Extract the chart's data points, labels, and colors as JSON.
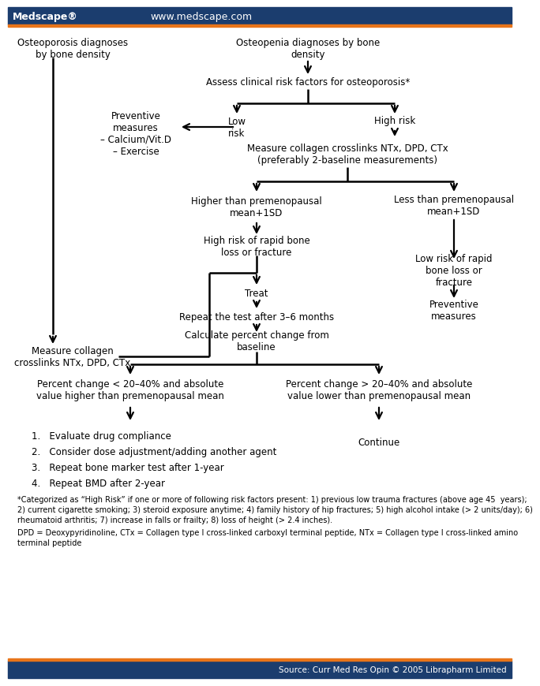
{
  "header_bg": "#1b3d6e",
  "header_orange_line": "#e8751a",
  "header_text_left": "Medscape®",
  "header_text_right": "www.medscape.com",
  "footer_bg": "#1b3d6e",
  "footer_text": "Source: Curr Med Res Opin © 2005 Librapharm Limited",
  "bg_color": "#ffffff",
  "text_color": "#000000",
  "footnote1": "*Categorized as “High Risk” if one or more of following risk factors present: 1) previous low trauma fractures (above age 45  years);\n2) current cigarette smoking; 3) steroid exposure anytime; 4) family history of hip fractures; 5) high alcohol intake (> 2 units/day); 6)\nrheumatoid arthritis; 7) increase in falls or frailty; 8) loss of height (> 2.4 inches).",
  "footnote2": "DPD = Deoxypyridinoline, CTx = Collagen type I cross-linked carboxyl terminal peptide, NTx = Collagen type I cross-linked amino\nterminal peptide"
}
